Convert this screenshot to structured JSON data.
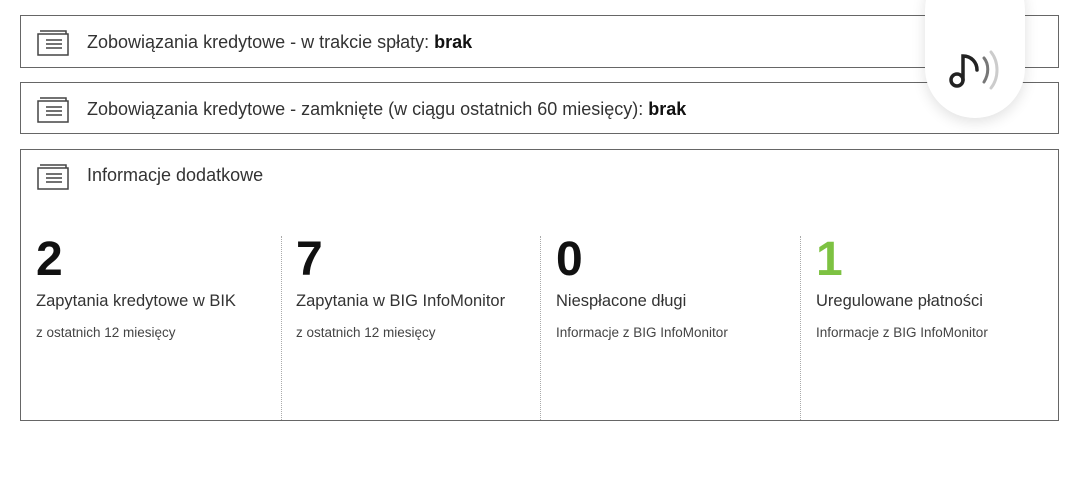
{
  "sections": [
    {
      "title": "Zobowiązania kredytowe - w trakcie spłaty:",
      "value": "brak",
      "icon": "document-list-icon"
    },
    {
      "title": "Zobowiązania kredytowe - zamknięte (w ciągu ostatnich 60 miesięcy):",
      "value": "brak",
      "icon": "document-list-icon"
    }
  ],
  "additional": {
    "title": "Informacje dodatkowe",
    "icon": "document-list-icon",
    "stats": [
      {
        "value": "2",
        "label": "Zapytania kredytowe w BIK",
        "sub": "z ostatnich 12 miesięcy",
        "color": "#111111"
      },
      {
        "value": "7",
        "label": "Zapytania w BIG InfoMonitor",
        "sub": "z ostatnich 12 miesięcy",
        "color": "#111111"
      },
      {
        "value": "0",
        "label": "Niespłacone długi",
        "sub": "Informacje z BIG InfoMonitor",
        "color": "#111111"
      },
      {
        "value": "1",
        "label": "Uregulowane płatności",
        "sub": "Informacje z BIG InfoMonitor",
        "color": "#7dc242"
      }
    ]
  },
  "floating_button": {
    "icon": "music-note-sound-icon"
  }
}
